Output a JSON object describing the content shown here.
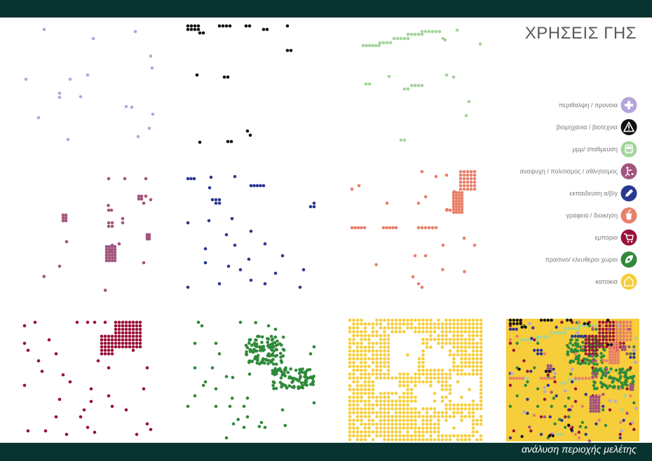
{
  "header": {
    "title": "ΧΡΗΣΕΙΣ ΓΗΣ"
  },
  "footer": {
    "text": "ανάλυση περιοχής μελέτης"
  },
  "legend": {
    "items": [
      {
        "key": "health",
        "label": "περιθαλψη / προνοια",
        "color": "#b3a6db",
        "icon": "plus-icon"
      },
      {
        "key": "industry",
        "label": "βιομηχανια / βιοτεχνια",
        "color": "#111111",
        "icon": "warning-icon"
      },
      {
        "key": "transport",
        "label": "μμμ/ σταθμευση",
        "color": "#a3d49a",
        "icon": "bus-icon"
      },
      {
        "key": "leisure",
        "label": "αναψυχη / πολιτισμος / αθλητισμος",
        "color": "#a2557e",
        "icon": "leisure-icon"
      },
      {
        "key": "education",
        "label": "εκπαιδευση α/β/γ",
        "color": "#2b3990",
        "icon": "pencil-icon"
      },
      {
        "key": "offices",
        "label": "γραφεια / διοικηση",
        "color": "#e8806a",
        "icon": "office-icon"
      },
      {
        "key": "commerce",
        "label": "εμποριο",
        "color": "#9b1239",
        "icon": "cart-icon"
      },
      {
        "key": "green",
        "label": "πρασινο/ ελευθεροι χωροι",
        "color": "#2f8a3a",
        "icon": "leaf-icon"
      },
      {
        "key": "housing",
        "label": "κατοικια",
        "color": "#f6cd3b",
        "icon": "house-icon"
      }
    ]
  }
}
